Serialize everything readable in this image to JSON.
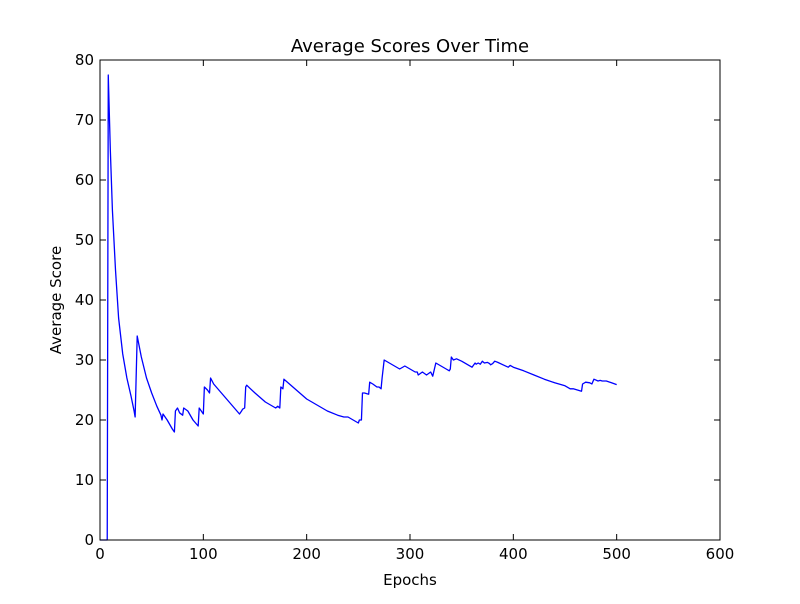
{
  "chart_data": {
    "type": "line",
    "title": "Average Scores Over Time",
    "xlabel": "Epochs",
    "ylabel": "Average Score",
    "xlim": [
      0,
      600
    ],
    "ylim": [
      0,
      80
    ],
    "xticks": [
      "0",
      "100",
      "200",
      "300",
      "400",
      "500",
      "600"
    ],
    "yticks": [
      "0",
      "10",
      "20",
      "30",
      "40",
      "50",
      "60",
      "70",
      "80"
    ],
    "grid": false,
    "legend": "none",
    "series": [
      {
        "color": "#0000ff",
        "x": [
          0,
          5,
          7,
          8,
          10,
          12,
          15,
          18,
          22,
          26,
          30,
          33,
          34,
          36,
          40,
          45,
          50,
          55,
          59,
          60,
          61,
          65,
          70,
          72,
          73,
          75,
          77,
          80,
          81,
          85,
          90,
          95,
          96,
          98,
          100,
          101,
          104,
          106,
          107,
          110,
          115,
          120,
          125,
          130,
          135,
          137,
          138,
          140,
          141,
          142,
          145,
          150,
          160,
          170,
          172,
          174,
          175,
          177,
          178,
          180,
          190,
          200,
          210,
          220,
          230,
          236,
          240,
          245,
          250,
          251,
          253,
          254,
          256,
          260,
          261,
          264,
          268,
          270,
          272,
          273,
          275,
          280,
          285,
          290,
          295,
          300,
          305,
          307,
          308,
          312,
          316,
          320,
          322,
          325,
          330,
          335,
          338,
          339,
          340,
          342,
          345,
          350,
          355,
          360,
          363,
          364,
          366,
          368,
          370,
          372,
          375,
          377,
          378,
          380,
          382,
          385,
          390,
          395,
          397,
          400,
          410,
          420,
          430,
          440,
          450,
          455,
          458,
          462,
          466,
          467,
          470,
          474,
          476,
          478,
          482,
          484,
          486,
          490,
          495,
          500
        ],
        "y": [
          0,
          0,
          0,
          77.5,
          65,
          55,
          45,
          37,
          31,
          27,
          24,
          21.5,
          20.5,
          34,
          30.5,
          27,
          24.5,
          22.3,
          20.8,
          20,
          21,
          20,
          18.5,
          18,
          21.5,
          22,
          21.2,
          20.8,
          22,
          21.5,
          20,
          19,
          22,
          21.5,
          21,
          25.5,
          25,
          24.5,
          27,
          26,
          25,
          24,
          23,
          22,
          21,
          21.5,
          21.8,
          22,
          25.5,
          25.8,
          25.3,
          24.5,
          23,
          22,
          22.3,
          22,
          25.5,
          25.2,
          26.8,
          26.5,
          25,
          23.5,
          22.5,
          21.5,
          20.8,
          20.5,
          20.5,
          20,
          19.5,
          20,
          20,
          24.5,
          24.5,
          24.3,
          26.3,
          26,
          25.5,
          25.5,
          25.2,
          27,
          30,
          29.5,
          29,
          28.5,
          29,
          28.5,
          28,
          28,
          27.5,
          28,
          27.5,
          28,
          27.3,
          29.5,
          29,
          28.5,
          28.2,
          28.5,
          30.5,
          30,
          30.2,
          29.8,
          29.3,
          28.8,
          29.5,
          29.3,
          29.5,
          29.3,
          29.8,
          29.5,
          29.6,
          29.4,
          29.2,
          29.4,
          29.8,
          29.6,
          29.2,
          28.8,
          29.1,
          28.8,
          28.2,
          27.5,
          26.8,
          26.2,
          25.7,
          25.2,
          25.2,
          25,
          24.8,
          26,
          26.3,
          26.2,
          26,
          26.8,
          26.5,
          26.6,
          26.5,
          26.5,
          26.2,
          25.9
        ]
      }
    ]
  }
}
